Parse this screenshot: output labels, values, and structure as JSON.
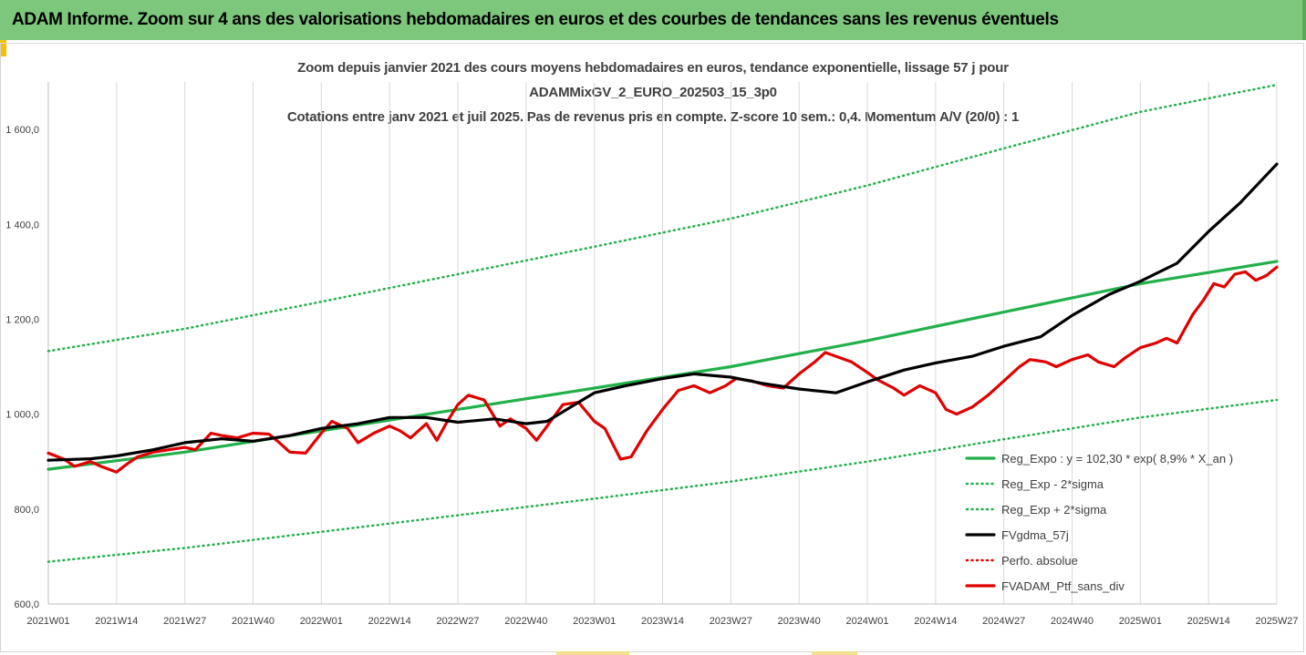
{
  "banner": {
    "title": "ADAM Informe. Zoom sur 4 ans des valorisations hebdomadaires en euros et des courbes de tendances sans les revenus éventuels"
  },
  "colors": {
    "banner_bg": "#7dc77d",
    "trend_green": "#22b04b",
    "sigma_green": "#22b04b",
    "smooth_black": "#000000",
    "portfolio_red": "#e00000",
    "perf_red": "#e00000"
  },
  "chart_data": {
    "type": "line",
    "title_lines": [
      "Zoom depuis janvier 2021 des cours moyens hebdomadaires  en euros, tendance exponentielle, lissage 57 j pour",
      "ADAMMixGV_2_EURO_202503_15_3p0",
      "Cotations entre janv 2021 et juil 2025. Pas de revenus pris en compte. Z-score 10 sem.: 0,4. Momentum A/V (20/0) : 1"
    ],
    "x_tick_labels": [
      "2021W01",
      "2021W14",
      "2021W27",
      "2021W40",
      "2022W01",
      "2022W14",
      "2022W27",
      "2022W40",
      "2023W01",
      "2023W14",
      "2023W27",
      "2023W40",
      "2024W01",
      "2024W14",
      "2024W27",
      "2024W40",
      "2025W01",
      "2025W14",
      "2025W27"
    ],
    "ylim": [
      600,
      1700
    ],
    "y_ticks": [
      600,
      800,
      1000,
      1200,
      1400,
      1600
    ],
    "y_tick_labels": [
      "600,0",
      "800,0",
      "1 000,0",
      "1 200,0",
      "1 400,0",
      "1 600,0"
    ],
    "grid": "vertical",
    "legend_position": "bottom-right",
    "series": [
      {
        "name": "Reg_Expo : y = 102,30 * exp( 8,9% *  X_an )",
        "style": "solid",
        "color": "#22b04b",
        "points": [
          [
            0,
            884
          ],
          [
            26,
            920
          ],
          [
            52,
            965
          ],
          [
            78,
            1010
          ],
          [
            104,
            1055
          ],
          [
            130,
            1100
          ],
          [
            156,
            1155
          ],
          [
            182,
            1215
          ],
          [
            208,
            1275
          ],
          [
            234,
            1322
          ]
        ]
      },
      {
        "name": "Reg_Exp - 2*sigma",
        "style": "dotted",
        "color": "#22b04b",
        "points": [
          [
            0,
            689
          ],
          [
            26,
            718
          ],
          [
            52,
            752
          ],
          [
            78,
            787
          ],
          [
            104,
            822
          ],
          [
            130,
            858
          ],
          [
            156,
            900
          ],
          [
            182,
            947
          ],
          [
            208,
            993
          ],
          [
            234,
            1030
          ]
        ]
      },
      {
        "name": "Reg_Exp + 2*sigma",
        "style": "dotted",
        "color": "#22b04b",
        "points": [
          [
            0,
            1133
          ],
          [
            26,
            1180
          ],
          [
            52,
            1237
          ],
          [
            78,
            1295
          ],
          [
            104,
            1353
          ],
          [
            130,
            1412
          ],
          [
            156,
            1482
          ],
          [
            182,
            1560
          ],
          [
            208,
            1637
          ],
          [
            234,
            1694
          ]
        ]
      },
      {
        "name": "FVgdma_57j",
        "style": "solid",
        "color": "#000000",
        "points": [
          [
            0,
            903
          ],
          [
            8,
            906
          ],
          [
            13,
            912
          ],
          [
            20,
            925
          ],
          [
            26,
            940
          ],
          [
            33,
            948
          ],
          [
            39,
            943
          ],
          [
            46,
            955
          ],
          [
            52,
            970
          ],
          [
            59,
            980
          ],
          [
            65,
            993
          ],
          [
            72,
            993
          ],
          [
            78,
            983
          ],
          [
            85,
            990
          ],
          [
            91,
            980
          ],
          [
            95,
            985
          ],
          [
            104,
            1045
          ],
          [
            110,
            1060
          ],
          [
            117,
            1075
          ],
          [
            123,
            1085
          ],
          [
            130,
            1078
          ],
          [
            136,
            1065
          ],
          [
            143,
            1053
          ],
          [
            150,
            1045
          ],
          [
            156,
            1068
          ],
          [
            163,
            1093
          ],
          [
            169,
            1108
          ],
          [
            176,
            1122
          ],
          [
            182,
            1143
          ],
          [
            189,
            1163
          ],
          [
            195,
            1208
          ],
          [
            202,
            1252
          ],
          [
            208,
            1280
          ],
          [
            215,
            1318
          ],
          [
            221,
            1385
          ],
          [
            227,
            1445
          ],
          [
            234,
            1527
          ]
        ]
      },
      {
        "name": "Perfo. absolue",
        "style": "dotted",
        "color": "#e00000",
        "points": []
      },
      {
        "name": "FVADAM_Ptf_sans_div",
        "style": "solid",
        "color": "#e00000",
        "points": [
          [
            0,
            918
          ],
          [
            3,
            905
          ],
          [
            5,
            890
          ],
          [
            8,
            900
          ],
          [
            10,
            890
          ],
          [
            13,
            878
          ],
          [
            15,
            895
          ],
          [
            17,
            910
          ],
          [
            20,
            920
          ],
          [
            23,
            925
          ],
          [
            26,
            930
          ],
          [
            28,
            925
          ],
          [
            31,
            960
          ],
          [
            33,
            955
          ],
          [
            36,
            950
          ],
          [
            39,
            960
          ],
          [
            42,
            958
          ],
          [
            44,
            940
          ],
          [
            46,
            920
          ],
          [
            49,
            918
          ],
          [
            52,
            960
          ],
          [
            54,
            985
          ],
          [
            57,
            970
          ],
          [
            59,
            940
          ],
          [
            62,
            960
          ],
          [
            65,
            975
          ],
          [
            67,
            965
          ],
          [
            69,
            950
          ],
          [
            72,
            980
          ],
          [
            74,
            945
          ],
          [
            76,
            985
          ],
          [
            78,
            1020
          ],
          [
            80,
            1040
          ],
          [
            83,
            1030
          ],
          [
            86,
            975
          ],
          [
            88,
            990
          ],
          [
            91,
            970
          ],
          [
            93,
            945
          ],
          [
            95,
            975
          ],
          [
            98,
            1020
          ],
          [
            101,
            1025
          ],
          [
            104,
            985
          ],
          [
            106,
            970
          ],
          [
            109,
            905
          ],
          [
            111,
            910
          ],
          [
            114,
            965
          ],
          [
            117,
            1010
          ],
          [
            120,
            1050
          ],
          [
            123,
            1060
          ],
          [
            126,
            1045
          ],
          [
            129,
            1060
          ],
          [
            131,
            1075
          ],
          [
            134,
            1070
          ],
          [
            137,
            1060
          ],
          [
            140,
            1055
          ],
          [
            143,
            1085
          ],
          [
            146,
            1110
          ],
          [
            148,
            1130
          ],
          [
            150,
            1122
          ],
          [
            153,
            1110
          ],
          [
            156,
            1088
          ],
          [
            158,
            1072
          ],
          [
            161,
            1055
          ],
          [
            163,
            1040
          ],
          [
            166,
            1060
          ],
          [
            169,
            1045
          ],
          [
            171,
            1010
          ],
          [
            173,
            1000
          ],
          [
            176,
            1015
          ],
          [
            179,
            1040
          ],
          [
            182,
            1070
          ],
          [
            185,
            1100
          ],
          [
            187,
            1115
          ],
          [
            190,
            1110
          ],
          [
            192,
            1100
          ],
          [
            195,
            1115
          ],
          [
            198,
            1125
          ],
          [
            200,
            1110
          ],
          [
            203,
            1100
          ],
          [
            205,
            1118
          ],
          [
            208,
            1140
          ],
          [
            211,
            1150
          ],
          [
            213,
            1160
          ],
          [
            215,
            1150
          ],
          [
            218,
            1210
          ],
          [
            220,
            1240
          ],
          [
            222,
            1275
          ],
          [
            224,
            1268
          ],
          [
            226,
            1295
          ],
          [
            228,
            1300
          ],
          [
            230,
            1282
          ],
          [
            232,
            1292
          ],
          [
            234,
            1310
          ]
        ]
      }
    ]
  }
}
